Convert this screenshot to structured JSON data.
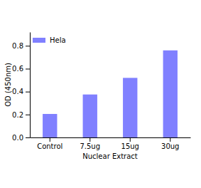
{
  "chart_data": {
    "type": "bar",
    "x_label": "Nuclear Extract",
    "y_label": "OD (450nm)",
    "categories": [
      "Control",
      "7.5ug",
      "15ug",
      "30ug"
    ],
    "series": [
      {
        "name": "Hela",
        "color": "#8080ff",
        "values": [
          0.205,
          0.375,
          0.52,
          0.76
        ]
      }
    ],
    "ylim": [
      0,
      0.92
    ],
    "yticks": [
      {
        "value": 0,
        "label": "0.0"
      },
      0.2,
      0.4,
      0.6,
      0.8
    ],
    "grid": false,
    "legend": "upper left"
  }
}
